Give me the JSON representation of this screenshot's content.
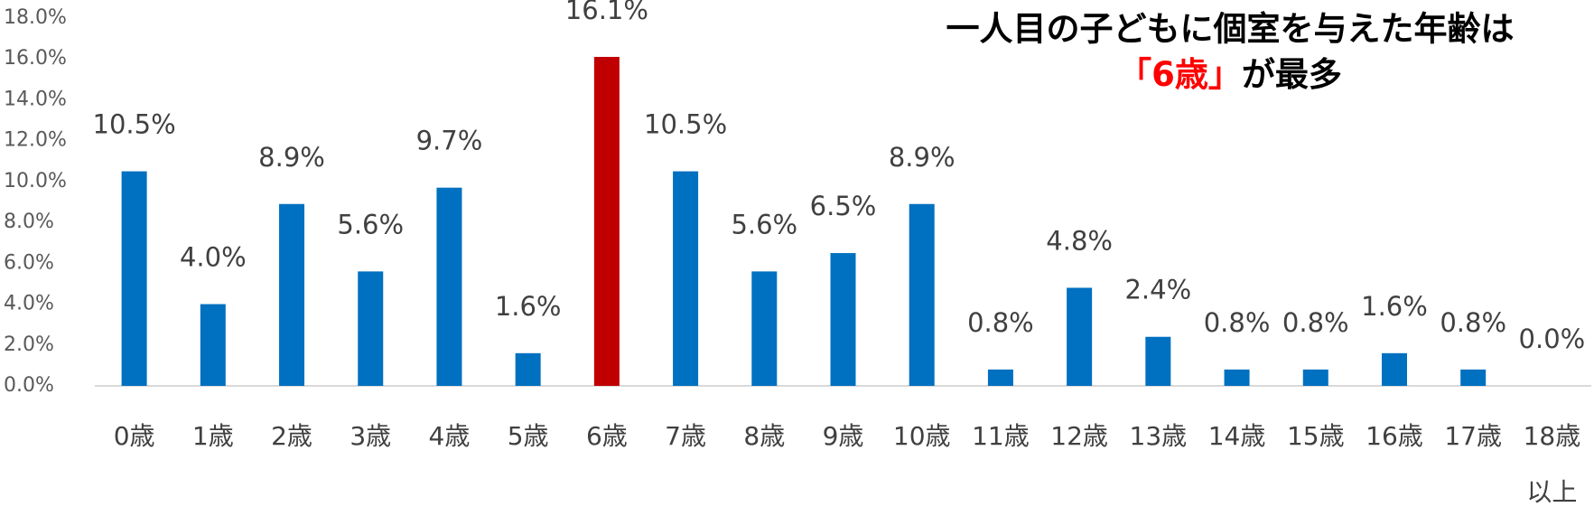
{
  "chart_data": {
    "type": "bar",
    "title": "一人目の子どもに個室を与えた年齢は",
    "subtitle_highlight": "「6歳」",
    "subtitle": "が最多",
    "title_color": "#000000",
    "highlight_color": "#ff0000",
    "categories": [
      "0歳",
      "1歳",
      "2歳",
      "3歳",
      "4歳",
      "5歳",
      "6歳",
      "7歳",
      "8歳",
      "9歳",
      "10歳",
      "11歳",
      "12歳",
      "13歳",
      "14歳",
      "15歳",
      "16歳",
      "17歳",
      "18歳以上"
    ],
    "values": [
      10.5,
      4.0,
      8.9,
      5.6,
      9.7,
      1.6,
      16.1,
      10.5,
      5.6,
      6.5,
      8.9,
      0.8,
      4.8,
      2.4,
      0.8,
      0.8,
      1.6,
      0.8,
      0.0
    ],
    "value_labels": [
      "10.5%",
      "4.0%",
      "8.9%",
      "5.6%",
      "9.7%",
      "1.6%",
      "16.1%",
      "10.5%",
      "5.6%",
      "6.5%",
      "8.9%",
      "0.8%",
      "4.8%",
      "2.4%",
      "0.8%",
      "0.8%",
      "1.6%",
      "0.8%",
      "0.0%"
    ],
    "colors": [
      "#0070c0",
      "#0070c0",
      "#0070c0",
      "#0070c0",
      "#0070c0",
      "#0070c0",
      "#c00000",
      "#0070c0",
      "#0070c0",
      "#0070c0",
      "#0070c0",
      "#0070c0",
      "#0070c0",
      "#0070c0",
      "#0070c0",
      "#0070c0",
      "#0070c0",
      "#0070c0",
      "#0070c0"
    ],
    "ylim": [
      0,
      18
    ],
    "yticks": [
      {
        "value": 0,
        "label": "0.0%"
      },
      {
        "value": 2,
        "label": "2.0%"
      },
      {
        "value": 4,
        "label": "4.0%"
      },
      {
        "value": 6,
        "label": "6.0%"
      },
      {
        "value": 8,
        "label": "8.0%"
      },
      {
        "value": 10,
        "label": "10.0%"
      },
      {
        "value": 12,
        "label": "12.0%"
      },
      {
        "value": 14,
        "label": "14.0%"
      },
      {
        "value": 16,
        "label": "16.0%"
      },
      {
        "value": 18,
        "label": "18.0%"
      }
    ],
    "grid": false
  }
}
